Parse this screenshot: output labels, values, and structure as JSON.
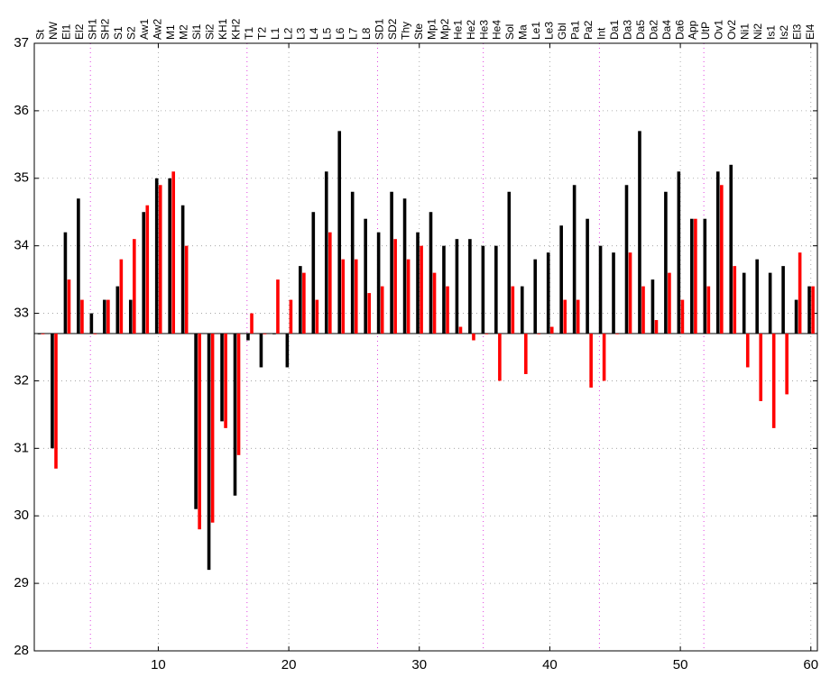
{
  "chart_data": {
    "type": "bar",
    "categories": [
      "St",
      "NW",
      "El1",
      "El2",
      "SH1",
      "SH2",
      "S1",
      "S2",
      "Aw1",
      "Aw2",
      "M1",
      "M2",
      "Si1",
      "Si2",
      "KH1",
      "KH2",
      "T1",
      "T2",
      "L1",
      "L2",
      "L3",
      "L4",
      "L5",
      "L6",
      "L7",
      "L8",
      "SD1",
      "SD2",
      "Thy",
      "Ste",
      "Mp1",
      "Mp2",
      "He1",
      "He2",
      "He3",
      "He4",
      "Sol",
      "Ma",
      "Le1",
      "Le3",
      "Gbl",
      "Pa1",
      "Pa2",
      "Int",
      "Da1",
      "Da3",
      "Da5",
      "Da2",
      "Da4",
      "Da6",
      "App",
      "UtP",
      "Ov1",
      "Ov2",
      "Ni1",
      "Ni2",
      "Is1",
      "Is2",
      "El3",
      "El4"
    ],
    "baseline": 32.7,
    "series": [
      {
        "color": "#000000",
        "values": [
          32.7,
          31.0,
          34.2,
          34.7,
          33.0,
          33.2,
          33.4,
          33.2,
          34.5,
          35.0,
          35.0,
          34.6,
          30.1,
          29.2,
          31.4,
          30.3,
          32.6,
          32.2,
          32.7,
          32.2,
          33.7,
          34.5,
          35.1,
          35.7,
          34.8,
          34.4,
          34.2,
          34.8,
          34.7,
          34.2,
          34.5,
          34.0,
          34.1,
          34.1,
          34.0,
          34.0,
          34.8,
          33.4,
          33.8,
          33.9,
          34.3,
          34.9,
          34.4,
          34.0,
          33.9,
          34.9,
          35.7,
          33.5,
          34.8,
          35.1,
          34.4,
          34.4,
          35.1,
          35.2,
          33.6,
          33.8,
          33.6,
          33.7,
          33.2,
          33.4
        ]
      },
      {
        "color": "#ff0000",
        "values": [
          32.7,
          30.7,
          33.5,
          33.2,
          32.7,
          33.2,
          33.8,
          34.1,
          34.6,
          34.9,
          35.1,
          34.0,
          29.8,
          29.9,
          31.3,
          30.9,
          33.0,
          32.7,
          33.5,
          33.2,
          33.6,
          33.2,
          34.2,
          33.8,
          33.8,
          33.3,
          33.4,
          34.1,
          33.8,
          34.0,
          33.6,
          33.4,
          32.8,
          32.6,
          32.7,
          32.0,
          33.4,
          32.1,
          32.7,
          32.8,
          33.2,
          33.2,
          31.9,
          32.0,
          32.7,
          33.9,
          33.4,
          32.9,
          33.6,
          33.2,
          34.4,
          33.4,
          34.9,
          33.7,
          32.2,
          31.7,
          31.3,
          31.8,
          33.9,
          33.4
        ]
      }
    ],
    "xlim": [
      0.5,
      60.5
    ],
    "xticks": [
      10,
      20,
      30,
      40,
      50,
      60
    ],
    "ylim": [
      28,
      37
    ],
    "yticks": [
      28,
      29,
      30,
      31,
      32,
      33,
      34,
      35,
      36,
      37
    ],
    "grid": true,
    "separators": [
      4.8,
      16.8,
      26.8,
      34.9,
      43.8,
      51.8
    ]
  }
}
